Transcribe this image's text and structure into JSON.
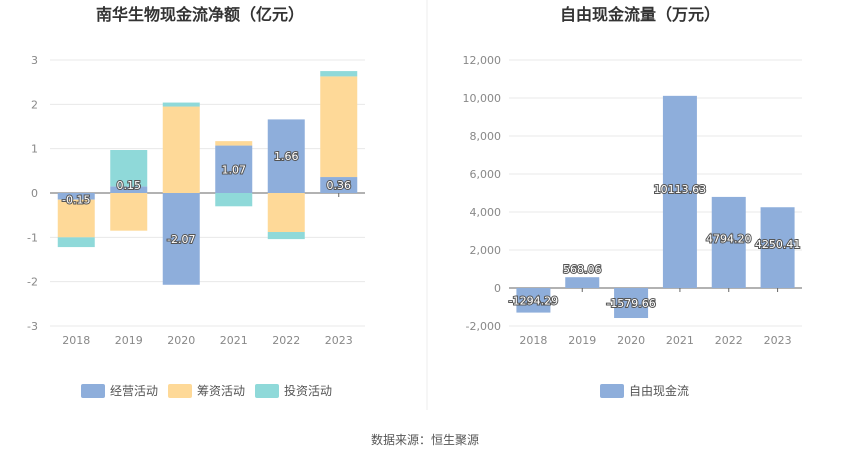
{
  "source_note": "数据来源：恒生聚源",
  "chart_data": [
    {
      "type": "bar",
      "stacked": true,
      "title": "南华生物现金流净额（亿元）",
      "categories": [
        "2018",
        "2019",
        "2020",
        "2021",
        "2022",
        "2023"
      ],
      "ylim": [
        -3,
        3
      ],
      "yticks": [
        "3",
        "2",
        "1",
        "0",
        "-1",
        "-2",
        "-3"
      ],
      "ytick_values": [
        3,
        2,
        1,
        0,
        -1,
        -2,
        -3
      ],
      "grid": true,
      "legend_position": "bottom",
      "series": [
        {
          "name": "经营活动",
          "color": "#8eaedb",
          "values": [
            -0.15,
            0.15,
            -2.07,
            1.07,
            1.66,
            0.36
          ]
        },
        {
          "name": "筹资活动",
          "color": "#fed998",
          "values": [
            -0.85,
            -0.85,
            1.95,
            0.1,
            -0.88,
            2.27
          ]
        },
        {
          "name": "投资活动",
          "color": "#8fd9d9",
          "values": [
            -0.22,
            0.82,
            0.09,
            -0.3,
            -0.16,
            0.12
          ]
        }
      ],
      "data_labels": [
        "-0.15",
        "0.15",
        "-2.07",
        "1.07",
        "1.66",
        "0.36"
      ]
    },
    {
      "type": "bar",
      "title": "自由现金流量（万元）",
      "categories": [
        "2018",
        "2019",
        "2020",
        "2021",
        "2022",
        "2023"
      ],
      "ylim": [
        -2000,
        12000
      ],
      "yticks": [
        "12,000",
        "10,000",
        "8,000",
        "6,000",
        "4,000",
        "2,000",
        "0",
        "-2,000"
      ],
      "ytick_values": [
        12000,
        10000,
        8000,
        6000,
        4000,
        2000,
        0,
        -2000
      ],
      "grid": true,
      "legend_position": "bottom",
      "series": [
        {
          "name": "自由现金流",
          "color": "#8eaedb",
          "values": [
            -1294.29,
            568.06,
            -1579.66,
            10113.63,
            4794.2,
            4250.41
          ]
        }
      ],
      "data_labels": [
        "-1294.29",
        "568.06",
        "-1579.66",
        "10113.63",
        "4794.20",
        "4250.41"
      ]
    }
  ]
}
